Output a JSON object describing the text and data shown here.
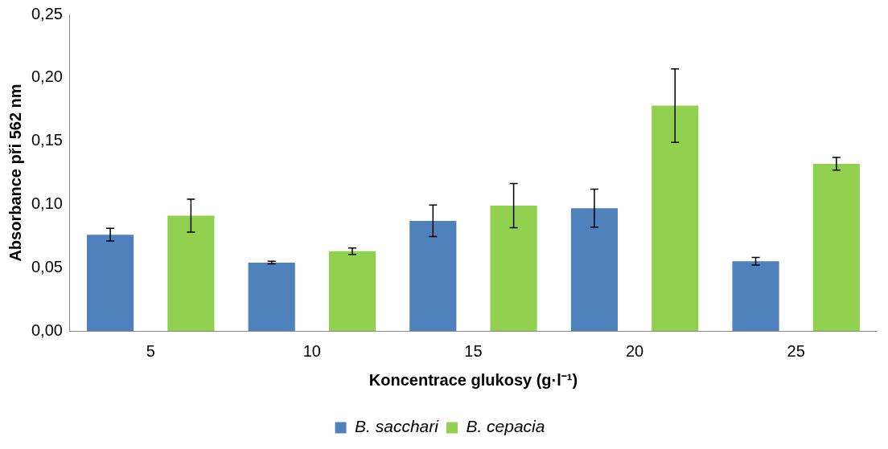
{
  "chart_data": {
    "type": "bar",
    "xlabel": "Koncentrace glukosy (g·l⁻¹)",
    "ylabel": "Absorbance při 562 nm",
    "categories": [
      "5",
      "10",
      "15",
      "20",
      "25"
    ],
    "series": [
      {
        "name": "B. sacchari",
        "color": "#4f81bd",
        "values": [
          0.076,
          0.054,
          0.087,
          0.097,
          0.055
        ],
        "errors": [
          0.005,
          0.001,
          0.0125,
          0.015,
          0.003
        ]
      },
      {
        "name": "B. cepacia",
        "color": "#92d050",
        "values": [
          0.091,
          0.063,
          0.099,
          0.178,
          0.132
        ],
        "errors": [
          0.013,
          0.0025,
          0.0175,
          0.029,
          0.005
        ]
      }
    ],
    "ylim": [
      0,
      0.25
    ],
    "yticks": [
      {
        "value": 0,
        "label": "0,00"
      },
      {
        "value": 0.05,
        "label": "0,05"
      },
      {
        "value": 0.1,
        "label": "0,10"
      },
      {
        "value": 0.15,
        "label": "0,15"
      },
      {
        "value": 0.2,
        "label": "0,20"
      },
      {
        "value": 0.25,
        "label": "0,25"
      }
    ],
    "grid": false,
    "legend": "bottom"
  }
}
